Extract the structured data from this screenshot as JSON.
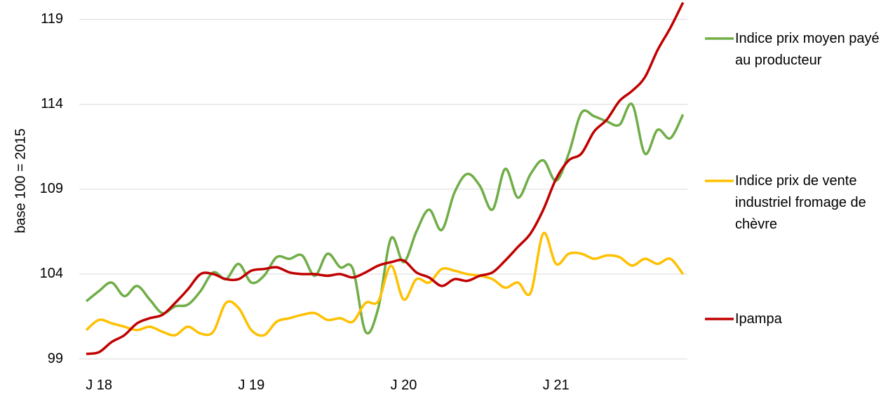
{
  "chart_data": {
    "type": "line",
    "y_label": "base 100 = 2015",
    "categories": [
      null,
      "J 18",
      null,
      null,
      null,
      null,
      null,
      null,
      null,
      null,
      null,
      null,
      null,
      "J 19",
      null,
      null,
      null,
      null,
      null,
      null,
      null,
      null,
      null,
      null,
      null,
      "J 20",
      null,
      null,
      null,
      null,
      null,
      null,
      null,
      null,
      null,
      null,
      null,
      "J 21",
      null,
      null,
      null,
      null,
      null,
      null,
      null,
      null,
      null,
      null
    ],
    "series": [
      {
        "name": "Indice prix moyen payé au producteur",
        "color": "#70ad47",
        "values": [
          102.4,
          103.0,
          103.5,
          102.7,
          103.3,
          102.5,
          101.7,
          102.1,
          102.2,
          103.0,
          104.1,
          103.7,
          104.6,
          103.5,
          103.9,
          105.0,
          104.9,
          105.1,
          103.9,
          105.2,
          104.4,
          104.3,
          100.6,
          102.0,
          106.1,
          104.7,
          106.5,
          107.8,
          106.6,
          108.8,
          109.9,
          109.2,
          107.8,
          110.2,
          108.5,
          109.9,
          110.7,
          109.5,
          111.1,
          113.5,
          113.3,
          113.0,
          112.8,
          114.0,
          111.1,
          112.5,
          112.0,
          113.4
        ]
      },
      {
        "name": "Indice prix de vente industriel fromage de chèvre",
        "color": "#ffc000",
        "values": [
          100.7,
          101.3,
          101.1,
          100.9,
          100.7,
          100.9,
          100.6,
          100.4,
          100.9,
          100.5,
          100.6,
          102.3,
          102.0,
          100.7,
          100.4,
          101.2,
          101.4,
          101.6,
          101.7,
          101.3,
          101.4,
          101.2,
          102.3,
          102.4,
          104.5,
          102.5,
          103.7,
          103.5,
          104.3,
          104.2,
          104.0,
          103.9,
          103.7,
          103.2,
          103.5,
          102.9,
          106.4,
          104.6,
          105.2,
          105.2,
          104.9,
          105.1,
          105.0,
          104.5,
          104.9,
          104.6,
          104.9,
          104.0
        ]
      },
      {
        "name": "Ipampa",
        "color": "#c00000",
        "values": [
          99.3,
          99.4,
          100.0,
          100.4,
          101.1,
          101.4,
          101.6,
          102.3,
          103.1,
          104.0,
          104.0,
          103.7,
          103.7,
          104.2,
          104.3,
          104.4,
          104.1,
          104.0,
          104.0,
          103.9,
          104.0,
          103.8,
          104.1,
          104.5,
          104.7,
          104.8,
          104.1,
          103.8,
          103.3,
          103.7,
          103.6,
          103.9,
          104.1,
          104.8,
          105.6,
          106.4,
          107.8,
          109.6,
          110.7,
          111.1,
          112.4,
          113.1,
          114.2,
          114.8,
          115.6,
          117.2,
          118.5,
          120.0
        ]
      }
    ],
    "ylim": [
      99,
      120
    ],
    "yticks": [
      99,
      104,
      109,
      114,
      119
    ],
    "grid": true
  }
}
